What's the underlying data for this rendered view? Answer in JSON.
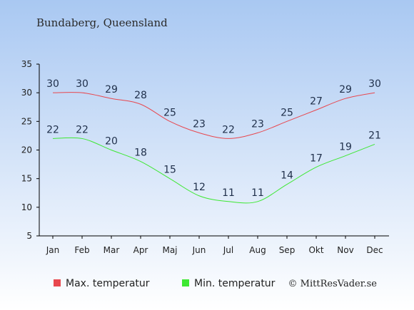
{
  "title": "Bundaberg, Queensland",
  "credit": "© MittResVader.se",
  "colors": {
    "max": "#e8474e",
    "min": "#3de832",
    "bg_top": "#a9c8f2",
    "bg_bottom": "#ffffff"
  },
  "chart_data": {
    "type": "line",
    "categories": [
      "Jan",
      "Feb",
      "Mar",
      "Apr",
      "Maj",
      "Jun",
      "Jul",
      "Aug",
      "Sep",
      "Okt",
      "Nov",
      "Dec"
    ],
    "ylim": [
      5,
      35
    ],
    "yticks": [
      5,
      10,
      15,
      20,
      25,
      30,
      35
    ],
    "grid": false,
    "legend_position": "bottom",
    "series": [
      {
        "name": "Max. temperatur",
        "values": [
          30,
          30,
          29,
          28,
          25,
          23,
          22,
          23,
          25,
          27,
          29,
          30
        ]
      },
      {
        "name": "Min. temperatur",
        "values": [
          22,
          22,
          20,
          18,
          15,
          12,
          11,
          11,
          14,
          17,
          19,
          21
        ]
      }
    ]
  }
}
